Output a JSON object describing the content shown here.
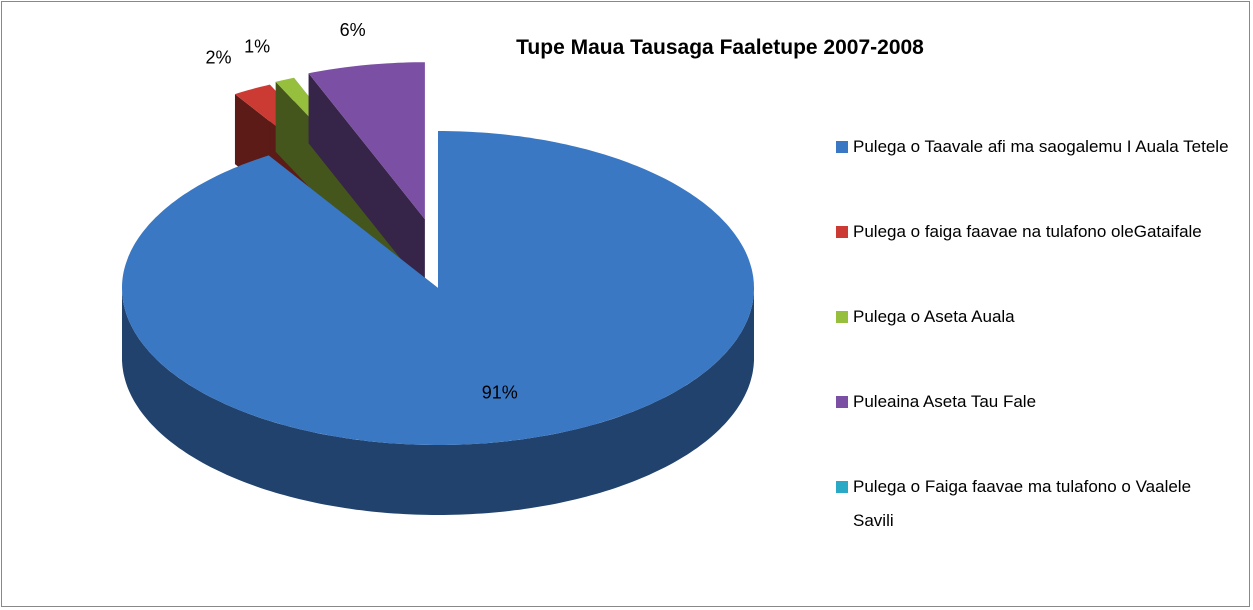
{
  "chart_data": {
    "type": "pie3d",
    "title": "Tupe Maua Tausaga Faaletupe 2007-2008",
    "categories": [
      "Pulega o Taavale afi ma saogalemu I Auala Tetele",
      "Pulega o faiga faavae na tulafono oleGataifale",
      "Pulega o Aseta Auala",
      "Puleaina Aseta Tau Fale",
      "Pulega o Faiga faavae ma tulafono o Vaalele Savili"
    ],
    "values": [
      91,
      2,
      1,
      6,
      0
    ],
    "value_labels": [
      "91%",
      "2%",
      "1%",
      "6%",
      null
    ],
    "colors": [
      "#3b78c4",
      "#cc3b33",
      "#96bf3e",
      "#7b4fa3",
      "#2aa9c7"
    ],
    "exploded": [
      false,
      true,
      true,
      true,
      true
    ],
    "legend": "right"
  }
}
